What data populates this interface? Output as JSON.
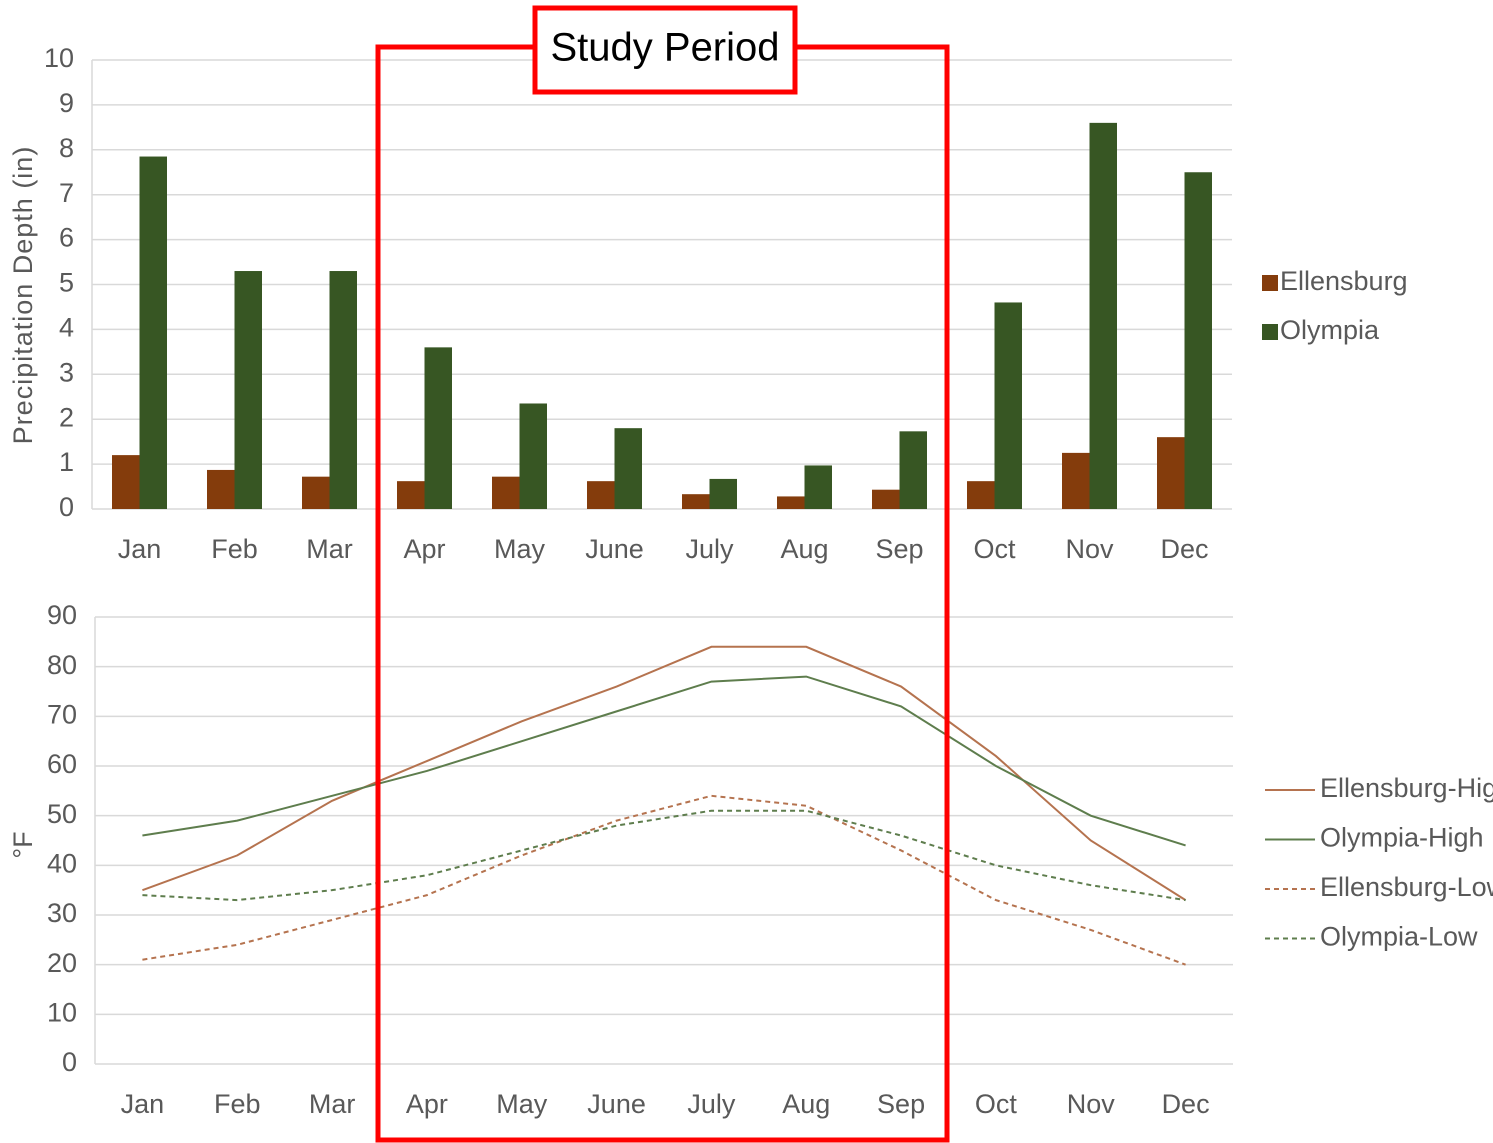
{
  "chart_data": [
    {
      "type": "bar",
      "annotation": "Study Period",
      "ylabel": "Precipitation Depth (in)",
      "categories": [
        "Jan",
        "Feb",
        "Mar",
        "Apr",
        "May",
        "June",
        "July",
        "Aug",
        "Sep",
        "Oct",
        "Nov",
        "Dec"
      ],
      "series": [
        {
          "name": "Ellensburg",
          "color": "#843c0c",
          "values": [
            1.2,
            0.87,
            0.72,
            0.62,
            0.72,
            0.62,
            0.33,
            0.28,
            0.43,
            0.62,
            1.25,
            1.6
          ]
        },
        {
          "name": "Olympia",
          "color": "#375623",
          "values": [
            7.85,
            5.3,
            5.3,
            3.6,
            2.35,
            1.8,
            0.67,
            0.97,
            1.73,
            4.6,
            8.6,
            7.5
          ]
        }
      ],
      "ylim": [
        0,
        10
      ],
      "yticks": [
        0,
        1,
        2,
        3,
        4,
        5,
        6,
        7,
        8,
        9,
        10
      ],
      "grid": true,
      "legend": "right"
    },
    {
      "type": "line",
      "ylabel": "°F",
      "categories": [
        "Jan",
        "Feb",
        "Mar",
        "Apr",
        "May",
        "June",
        "July",
        "Aug",
        "Sep",
        "Oct",
        "Nov",
        "Dec"
      ],
      "series": [
        {
          "name": "Ellensburg-High",
          "color": "#b5734f",
          "dashed": false,
          "values": [
            35,
            42,
            53,
            61,
            69,
            76,
            84,
            84,
            76,
            62,
            45,
            33
          ]
        },
        {
          "name": "Olympia-High",
          "color": "#5e7d4d",
          "dashed": false,
          "values": [
            46,
            49,
            54,
            59,
            65,
            71,
            77,
            78,
            72,
            60,
            50,
            44
          ]
        },
        {
          "name": "Ellensburg-Low",
          "color": "#b5734f",
          "dashed": true,
          "values": [
            21,
            24,
            29,
            34,
            42,
            49,
            54,
            52,
            43,
            33,
            27,
            20
          ]
        },
        {
          "name": "Olympia-Low",
          "color": "#5e7d4d",
          "dashed": true,
          "values": [
            34,
            33,
            35,
            38,
            43,
            48,
            51,
            51,
            46,
            40,
            36,
            33
          ]
        }
      ],
      "ylim": [
        0,
        90
      ],
      "yticks": [
        0,
        10,
        20,
        30,
        40,
        50,
        60,
        70,
        80,
        90
      ],
      "grid": true,
      "legend": "right"
    }
  ]
}
